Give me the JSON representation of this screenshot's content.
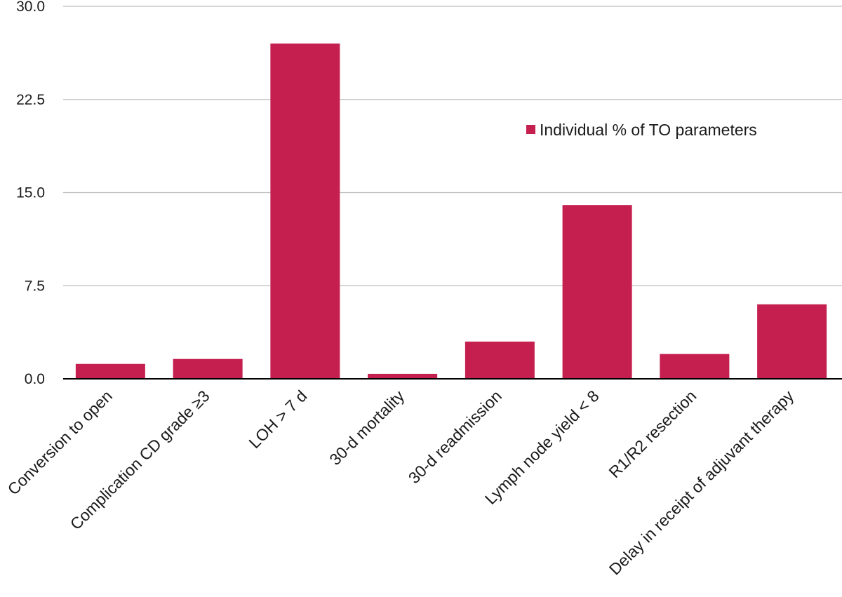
{
  "chart_data": {
    "type": "bar",
    "categories": [
      "Conversion to open",
      "Complication CD grade ≥3",
      "LOH > 7 d",
      "30-d mortality",
      "30-d readmission",
      "Lymph node yield < 8",
      "R1/R2 resection",
      "Delay in receipt of adjuvant therapy"
    ],
    "series": [
      {
        "name": "Individual % of TO parameters",
        "values": [
          1.2,
          1.6,
          27.0,
          0.4,
          3.0,
          14.0,
          2.0,
          6.0
        ]
      }
    ],
    "ylim": [
      0,
      30
    ],
    "yticks": [
      "0.0",
      "7.5",
      "15.0",
      "22.5",
      "30.0"
    ],
    "ytick_values": [
      0,
      7.5,
      15,
      22.5,
      30
    ],
    "grid": true,
    "legend_position": "upper-right-inside",
    "title": "",
    "xlabel": "",
    "ylabel": "",
    "colors": {
      "bar": "#c41f4f",
      "grid": "#bdbdbd",
      "axis": "#000000"
    }
  }
}
